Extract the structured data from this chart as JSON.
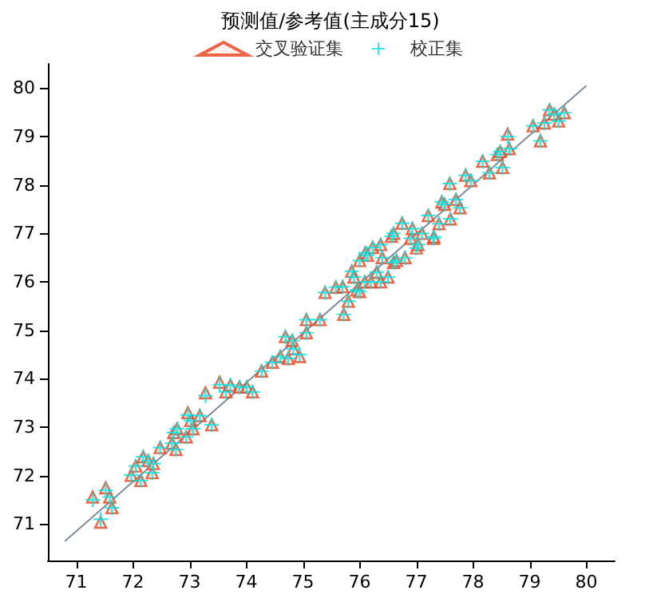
{
  "chart_data": {
    "type": "scatter",
    "title": "预测值/参考值(主成分15)",
    "x": [
      71.29,
      71.43,
      71.52,
      71.59,
      71.63,
      71.97,
      72.05,
      72.14,
      72.18,
      72.27,
      72.34,
      72.36,
      72.48,
      72.69,
      72.72,
      72.76,
      72.78,
      72.94,
      72.97,
      73.02,
      73.06,
      73.18,
      73.28,
      73.39,
      73.53,
      73.64,
      73.72,
      73.88,
      74.01,
      74.11,
      74.27,
      74.46,
      74.6,
      74.69,
      74.74,
      74.81,
      74.83,
      74.94,
      75.06,
      75.06,
      75.3,
      75.39,
      75.58,
      75.72,
      75.7,
      75.8,
      75.86,
      75.9,
      75.95,
      76.0,
      76.0,
      76.09,
      76.1,
      76.14,
      76.2,
      76.23,
      76.3,
      76.37,
      76.37,
      76.4,
      76.5,
      76.56,
      76.6,
      76.6,
      76.65,
      76.75,
      76.8,
      76.9,
      76.93,
      77.0,
      77.03,
      77.1,
      77.21,
      77.3,
      77.31,
      77.4,
      77.45,
      77.5,
      77.59,
      77.6,
      77.7,
      77.77,
      77.87,
      77.96,
      78.17,
      78.29,
      78.43,
      78.48,
      78.52,
      78.61,
      78.64,
      79.06,
      79.19,
      79.26,
      79.35,
      79.43,
      79.51,
      79.61
    ],
    "series": [
      {
        "name": "交叉验证集",
        "color": "#e8401c",
        "marker": "triangle",
        "values": [
          71.56,
          71.04,
          71.75,
          71.56,
          71.34,
          72.01,
          72.2,
          71.9,
          72.39,
          72.31,
          72.06,
          72.25,
          72.58,
          72.67,
          72.89,
          72.54,
          72.97,
          72.8,
          73.3,
          73.14,
          72.97,
          73.24,
          73.71,
          73.05,
          73.93,
          73.73,
          73.87,
          73.83,
          73.83,
          73.73,
          74.16,
          74.34,
          74.46,
          74.87,
          74.42,
          74.79,
          74.62,
          74.46,
          74.95,
          75.22,
          75.22,
          75.78,
          75.89,
          75.33,
          75.9,
          75.6,
          76.22,
          76.1,
          75.83,
          76.44,
          75.8,
          76.0,
          76.6,
          76.55,
          76.0,
          76.71,
          76.2,
          76.77,
          76.0,
          76.5,
          76.1,
          76.94,
          77.0,
          76.4,
          76.44,
          77.21,
          76.5,
          76.9,
          77.1,
          76.7,
          76.77,
          77.0,
          77.37,
          76.9,
          76.93,
          77.2,
          77.65,
          77.6,
          78.03,
          77.3,
          77.7,
          77.53,
          78.2,
          78.09,
          78.49,
          78.25,
          78.63,
          78.69,
          78.36,
          79.05,
          78.75,
          79.22,
          78.91,
          79.28,
          79.55,
          79.46,
          79.32,
          79.49
        ]
      },
      {
        "name": "校正集",
        "color": "#00e5e5",
        "marker": "cross",
        "values": [
          71.5,
          71.1,
          71.7,
          71.56,
          71.34,
          72.01,
          72.2,
          71.9,
          72.39,
          72.31,
          72.06,
          72.25,
          72.58,
          72.67,
          72.89,
          72.54,
          72.97,
          72.8,
          73.25,
          73.14,
          72.97,
          73.24,
          73.65,
          73.05,
          73.88,
          73.73,
          73.87,
          73.83,
          73.83,
          73.73,
          74.16,
          74.34,
          74.46,
          74.87,
          74.42,
          74.79,
          74.62,
          74.5,
          74.95,
          75.22,
          75.22,
          75.78,
          75.89,
          75.33,
          75.9,
          75.6,
          76.22,
          76.1,
          75.83,
          76.44,
          75.8,
          76.0,
          76.6,
          76.55,
          76.0,
          76.71,
          76.2,
          76.77,
          76.0,
          76.5,
          76.1,
          76.94,
          77.0,
          76.4,
          76.44,
          77.21,
          76.5,
          76.9,
          77.1,
          76.7,
          76.77,
          77.0,
          77.37,
          76.9,
          76.93,
          77.2,
          77.65,
          77.6,
          78.03,
          77.3,
          77.7,
          77.53,
          78.2,
          78.09,
          78.49,
          78.25,
          78.63,
          78.69,
          78.36,
          79.0,
          78.75,
          79.22,
          78.91,
          79.28,
          79.55,
          79.46,
          79.32,
          79.49
        ]
      },
      {
        "type": "line",
        "color": "#7f8c9a",
        "marker": "none",
        "x": [
          70.8,
          80.0
        ],
        "values": [
          70.65,
          80.05
        ]
      }
    ],
    "xlim": [
      70.5,
      80.5
    ],
    "ylim": [
      70.25,
      80.5
    ],
    "xticks": [
      71,
      72,
      73,
      74,
      75,
      76,
      77,
      78,
      79,
      80
    ],
    "yticks": [
      71,
      72,
      73,
      74,
      75,
      76,
      77,
      78,
      79,
      80
    ],
    "grid": false,
    "legend": "top"
  }
}
